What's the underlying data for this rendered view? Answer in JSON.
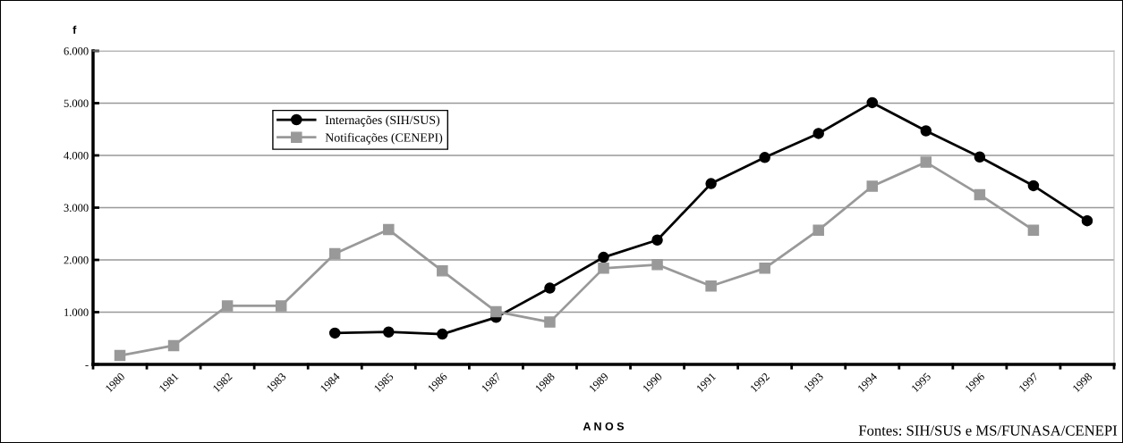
{
  "chart_data": {
    "type": "line",
    "ylabel": "f",
    "xlabel": "A N O S",
    "categories": [
      "1980",
      "1981",
      "1982",
      "1983",
      "1984",
      "1985",
      "1986",
      "1987",
      "1988",
      "1989",
      "1990",
      "1991",
      "1992",
      "1993",
      "1994",
      "1995",
      "1996",
      "1997",
      "1998"
    ],
    "series": [
      {
        "name": "Internações (SIH/SUS)",
        "color": "#000000",
        "marker": "circle",
        "values": [
          null,
          null,
          null,
          null,
          600,
          620,
          580,
          900,
          1460,
          2050,
          2380,
          3460,
          3960,
          4420,
          5010,
          4470,
          3970,
          3420,
          2750
        ]
      },
      {
        "name": "Notificações (CENEPI)",
        "color": "#999999",
        "marker": "square",
        "values": [
          170,
          360,
          1120,
          1120,
          2120,
          2580,
          1790,
          1010,
          810,
          1840,
          1910,
          1500,
          1840,
          2570,
          3410,
          3870,
          3250,
          2570,
          null
        ]
      }
    ],
    "ylim": [
      0,
      6000
    ],
    "yticks": [
      {
        "value": 0,
        "label": "-"
      },
      {
        "value": 1000,
        "label": "1.000"
      },
      {
        "value": 2000,
        "label": "2.000"
      },
      {
        "value": 3000,
        "label": "3.000"
      },
      {
        "value": 4000,
        "label": "4.000"
      },
      {
        "value": 5000,
        "label": "5.000"
      },
      {
        "value": 6000,
        "label": "6.000"
      }
    ],
    "grid": "y",
    "legend": "top left",
    "line_style": "solid",
    "annotations": [
      "Fontes: SIH/SUS e MS/FUNASA/CENEPI"
    ]
  }
}
